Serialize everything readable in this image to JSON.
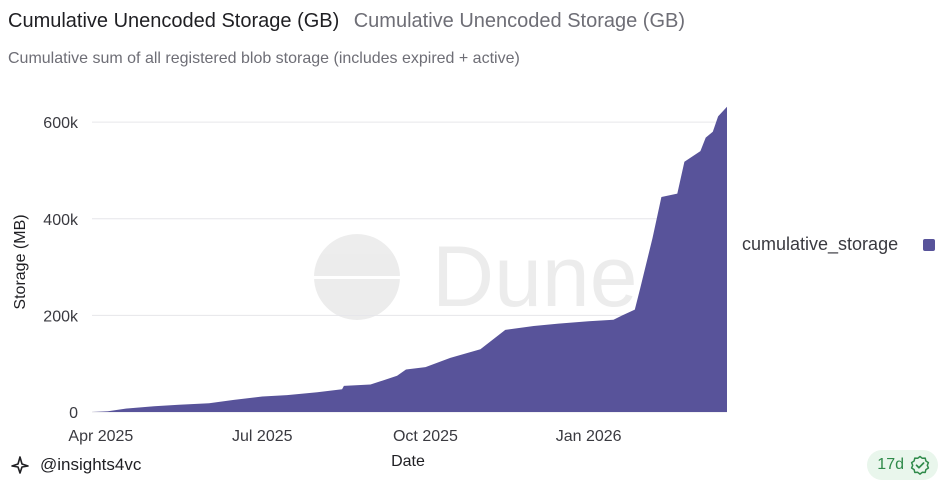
{
  "header": {
    "title": "Cumulative Unencoded Storage (GB)",
    "title_secondary": "Cumulative Unencoded Storage (GB)",
    "subtitle": "Cumulative sum of all registered blob storage (includes expired + active)"
  },
  "watermark": {
    "text": "Dune",
    "icon": "dune-logo-icon"
  },
  "chart_data": {
    "type": "area",
    "xlabel": "Date",
    "ylabel": "Storage (MB)",
    "ylim": [
      0,
      650000
    ],
    "xlim": [
      "2025-03-27",
      "2026-03-20"
    ],
    "x_ticks": [
      {
        "date": "2025-04-01",
        "label": "Apr 2025"
      },
      {
        "date": "2025-07-01",
        "label": "Jul 2025"
      },
      {
        "date": "2025-10-01",
        "label": "Oct 2025"
      },
      {
        "date": "2026-01-01",
        "label": "Jan 2026"
      }
    ],
    "y_ticks": [
      {
        "value": 0,
        "label": "0"
      },
      {
        "value": 200000,
        "label": "200k"
      },
      {
        "value": 400000,
        "label": "400k"
      },
      {
        "value": 600000,
        "label": "600k"
      }
    ],
    "grid": true,
    "legend_position": "right",
    "series": [
      {
        "name": "cumulative_storage",
        "color": "#58539a",
        "points": [
          [
            "2025-03-27",
            0
          ],
          [
            "2025-04-05",
            1500
          ],
          [
            "2025-04-15",
            7000
          ],
          [
            "2025-05-01",
            12000
          ],
          [
            "2025-05-15",
            15000
          ],
          [
            "2025-06-01",
            18000
          ],
          [
            "2025-06-15",
            25000
          ],
          [
            "2025-07-01",
            32000
          ],
          [
            "2025-07-15",
            35000
          ],
          [
            "2025-08-01",
            41000
          ],
          [
            "2025-08-15",
            47000
          ],
          [
            "2025-08-16",
            54000
          ],
          [
            "2025-08-31",
            57000
          ],
          [
            "2025-09-15",
            75000
          ],
          [
            "2025-09-20",
            88000
          ],
          [
            "2025-10-01",
            93000
          ],
          [
            "2025-10-15",
            112000
          ],
          [
            "2025-11-01",
            130000
          ],
          [
            "2025-11-15",
            170000
          ],
          [
            "2025-12-01",
            178000
          ],
          [
            "2025-12-15",
            183000
          ],
          [
            "2026-01-01",
            188000
          ],
          [
            "2026-01-15",
            191000
          ],
          [
            "2026-01-20",
            200000
          ],
          [
            "2026-01-27",
            212000
          ],
          [
            "2026-01-30",
            255000
          ],
          [
            "2026-02-06",
            360000
          ],
          [
            "2026-02-11",
            445000
          ],
          [
            "2026-02-20",
            452000
          ],
          [
            "2026-02-24",
            518000
          ],
          [
            "2026-03-05",
            540000
          ],
          [
            "2026-03-08",
            568000
          ],
          [
            "2026-03-12",
            580000
          ],
          [
            "2026-03-15",
            612000
          ],
          [
            "2026-03-20",
            632000
          ]
        ]
      }
    ]
  },
  "legend": {
    "items": [
      {
        "label": "cumulative_storage",
        "color": "#58539a"
      }
    ]
  },
  "footer": {
    "author_icon": "insights4vc-logo-icon",
    "author": "@insights4vc",
    "badge_text": "17d",
    "badge_icon": "verified-check-icon"
  }
}
